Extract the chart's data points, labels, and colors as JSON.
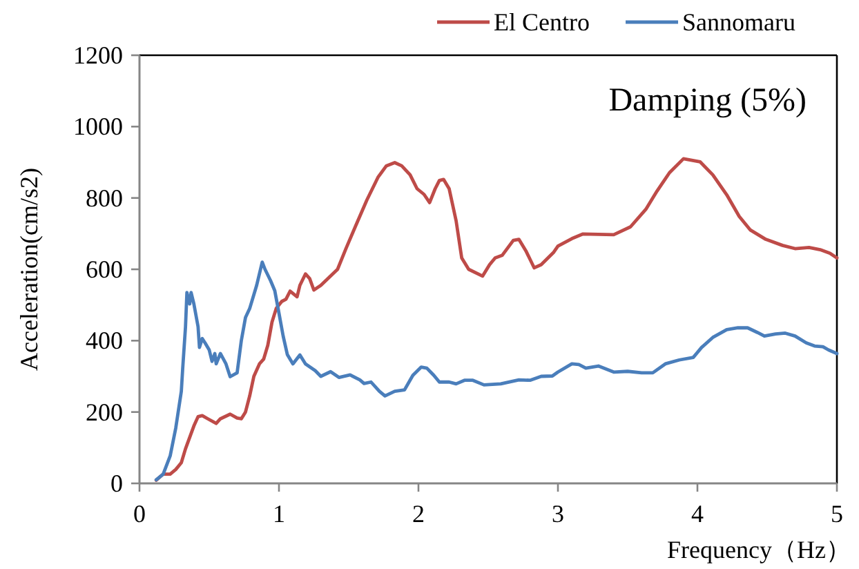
{
  "chart_data": {
    "type": "line",
    "xlabel": "Frequency（Hz）",
    "ylabel": "Acceleration(cm/s2)",
    "annotations": [
      "Damping (5%)"
    ],
    "xlim": [
      0,
      5
    ],
    "ylim": [
      0,
      1200
    ],
    "xticks": [
      0,
      1,
      2,
      3,
      4,
      5
    ],
    "yticks": [
      0,
      200,
      400,
      600,
      800,
      1000,
      1200
    ],
    "legend": "top right",
    "line_style": "solid",
    "series": [
      {
        "name": "El Centro",
        "color": "#be4b48",
        "x": [
          0.12,
          0.17,
          0.22,
          0.26,
          0.3,
          0.33,
          0.36,
          0.39,
          0.42,
          0.45,
          0.49,
          0.55,
          0.58,
          0.65,
          0.7,
          0.73,
          0.76,
          0.79,
          0.82,
          0.86,
          0.89,
          0.92,
          0.95,
          0.98,
          1.02,
          1.05,
          1.08,
          1.13,
          1.15,
          1.19,
          1.22,
          1.25,
          1.3,
          1.42,
          1.48,
          1.55,
          1.63,
          1.71,
          1.77,
          1.83,
          1.88,
          1.94,
          1.99,
          2.04,
          2.08,
          2.12,
          2.15,
          2.18,
          2.22,
          2.27,
          2.31,
          2.36,
          2.46,
          2.51,
          2.55,
          2.6,
          2.68,
          2.72,
          2.77,
          2.83,
          2.88,
          2.97,
          3.0,
          3.1,
          3.18,
          3.4,
          3.52,
          3.63,
          3.71,
          3.8,
          3.9,
          4.02,
          4.11,
          4.21,
          4.3,
          4.38,
          4.49,
          4.61,
          4.7,
          4.8,
          4.88,
          4.95,
          5.0
        ],
        "values": [
          9,
          26,
          26,
          39,
          58,
          97,
          129,
          161,
          187,
          190,
          181,
          168,
          181,
          194,
          183,
          181,
          200,
          245,
          300,
          335,
          348,
          387,
          452,
          490,
          510,
          516,
          539,
          523,
          555,
          587,
          574,
          542,
          555,
          600,
          658,
          722,
          794,
          858,
          890,
          899,
          890,
          865,
          826,
          810,
          787,
          826,
          849,
          852,
          826,
          736,
          632,
          600,
          581,
          613,
          632,
          639,
          681,
          684,
          652,
          604,
          613,
          648,
          665,
          686,
          699,
          697,
          719,
          768,
          819,
          871,
          910,
          901,
          865,
          809,
          748,
          710,
          684,
          667,
          658,
          661,
          655,
          645,
          632
        ]
      },
      {
        "name": "Sannomaru",
        "color": "#4a7ebb",
        "x": [
          0.12,
          0.17,
          0.22,
          0.26,
          0.3,
          0.31,
          0.33,
          0.34,
          0.36,
          0.37,
          0.39,
          0.42,
          0.43,
          0.45,
          0.47,
          0.5,
          0.52,
          0.54,
          0.55,
          0.58,
          0.62,
          0.65,
          0.7,
          0.73,
          0.76,
          0.79,
          0.84,
          0.88,
          0.9,
          0.94,
          0.97,
          1.0,
          1.03,
          1.06,
          1.1,
          1.15,
          1.19,
          1.26,
          1.3,
          1.37,
          1.43,
          1.51,
          1.58,
          1.61,
          1.66,
          1.72,
          1.76,
          1.83,
          1.9,
          1.96,
          2.02,
          2.06,
          2.11,
          2.15,
          2.22,
          2.27,
          2.33,
          2.39,
          2.47,
          2.59,
          2.72,
          2.8,
          2.88,
          2.96,
          3.0,
          3.1,
          3.15,
          3.2,
          3.29,
          3.4,
          3.5,
          3.6,
          3.68,
          3.77,
          3.87,
          3.97,
          4.03,
          4.11,
          4.21,
          4.29,
          4.36,
          4.43,
          4.48,
          4.56,
          4.63,
          4.7,
          4.78,
          4.84,
          4.9,
          4.94,
          5.0
        ],
        "values": [
          10,
          26,
          77,
          155,
          258,
          323,
          439,
          535,
          503,
          535,
          503,
          439,
          381,
          406,
          394,
          374,
          342,
          364,
          335,
          364,
          335,
          299,
          310,
          400,
          465,
          490,
          555,
          620,
          600,
          568,
          540,
          477,
          413,
          361,
          335,
          360,
          335,
          316,
          300,
          313,
          297,
          304,
          290,
          280,
          284,
          258,
          245,
          258,
          262,
          303,
          326,
          323,
          303,
          284,
          284,
          279,
          289,
          289,
          276,
          279,
          290,
          289,
          300,
          301,
          312,
          335,
          333,
          323,
          329,
          312,
          314,
          310,
          310,
          335,
          346,
          353,
          381,
          409,
          431,
          436,
          436,
          423,
          413,
          419,
          421,
          413,
          394,
          385,
          383,
          374,
          364
        ]
      }
    ]
  }
}
